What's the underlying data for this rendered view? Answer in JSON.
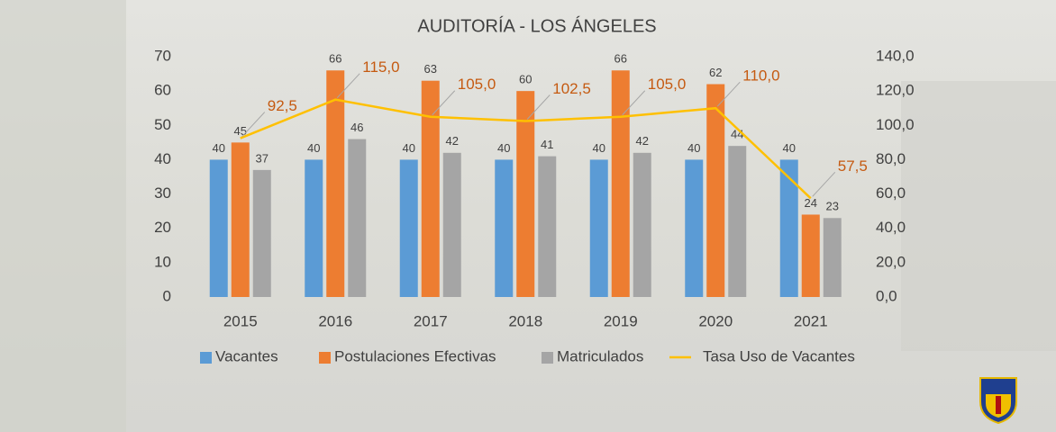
{
  "chart_data": {
    "type": "bar",
    "title": "AUDITORÍA - LOS ÁNGELES",
    "categories": [
      "2015",
      "2016",
      "2017",
      "2018",
      "2019",
      "2020",
      "2021"
    ],
    "series": [
      {
        "name": "Vacantes",
        "color": "#5b9bd5",
        "values": [
          40,
          40,
          40,
          40,
          40,
          40,
          40
        ]
      },
      {
        "name": "Postulaciones Efectivas",
        "color": "#ed7d31",
        "values": [
          45,
          66,
          63,
          60,
          66,
          62,
          24
        ]
      },
      {
        "name": "Matriculados",
        "color": "#a5a5a5",
        "values": [
          37,
          46,
          42,
          41,
          42,
          44,
          23
        ]
      },
      {
        "name": "Tasa Uso de Vacantes",
        "color": "#ffc000",
        "type": "line",
        "axis": "y2",
        "values": [
          92.5,
          115,
          105,
          102.5,
          105,
          110,
          57.5
        ],
        "value_labels": [
          "92,5",
          "115,0",
          "105,0",
          "102,5",
          "105,0",
          "110,0",
          "57,5"
        ]
      }
    ],
    "ylim": [
      0,
      70
    ],
    "yticks": [
      0,
      10,
      20,
      30,
      40,
      50,
      60,
      70
    ],
    "y2lim": [
      0,
      140
    ],
    "y2ticks": [
      {
        "value": 0,
        "label": "0,0"
      },
      {
        "value": 20,
        "label": "20,0"
      },
      {
        "value": 40,
        "label": "40,0"
      },
      {
        "value": 60,
        "label": "60,0"
      },
      {
        "value": 80,
        "label": "80,0"
      },
      {
        "value": 100,
        "label": "100,0"
      },
      {
        "value": 120,
        "label": "120,0"
      },
      {
        "value": 140,
        "label": "140,0"
      }
    ],
    "legend": "bottom"
  }
}
